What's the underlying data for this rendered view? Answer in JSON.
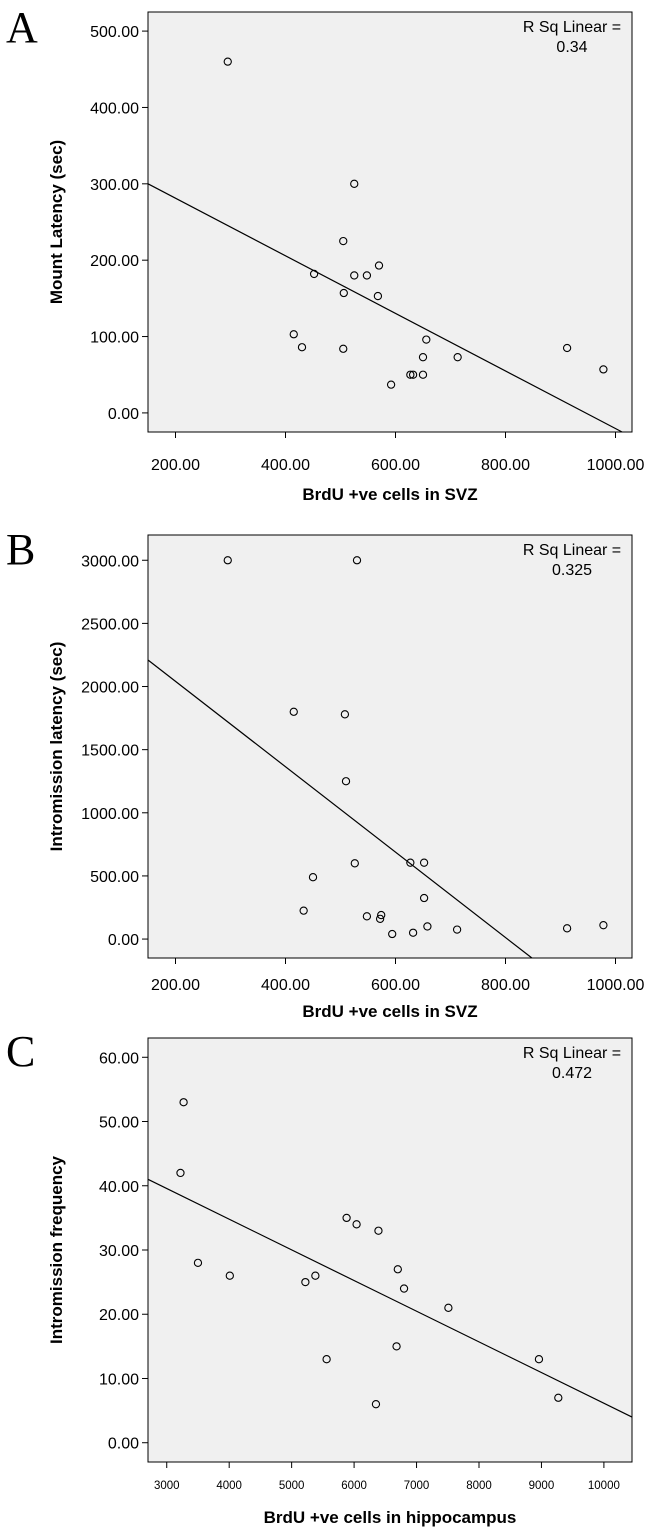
{
  "colors": {
    "plot_bg": "#f0f0f0",
    "axis": "#000000",
    "point_stroke": "#000000"
  },
  "chart_data": [
    {
      "panel": "A",
      "type": "scatter",
      "xlabel": "BrdU +ve cells in SVZ",
      "ylabel": "Mount Latency (sec)",
      "xlim": [
        150,
        1030
      ],
      "ylim": [
        -25,
        525
      ],
      "xticks": [
        200,
        400,
        600,
        800,
        1000
      ],
      "xtick_labels": [
        "200.00",
        "400.00",
        "600.00",
        "800.00",
        "1000.00"
      ],
      "yticks": [
        0,
        100,
        200,
        300,
        400,
        500
      ],
      "ytick_labels": [
        "0.00",
        "100.00",
        "200.00",
        "300.00",
        "400.00",
        "500.00"
      ],
      "rsq_label": "R Sq Linear =",
      "rsq_value": "0.34",
      "fit_line": {
        "x": [
          150,
          1012
        ],
        "y": [
          300,
          -25
        ]
      },
      "points": [
        {
          "x": 295,
          "y": 460
        },
        {
          "x": 525,
          "y": 300
        },
        {
          "x": 505,
          "y": 225
        },
        {
          "x": 570,
          "y": 193
        },
        {
          "x": 452,
          "y": 182
        },
        {
          "x": 525,
          "y": 180
        },
        {
          "x": 548,
          "y": 180
        },
        {
          "x": 506,
          "y": 157
        },
        {
          "x": 568,
          "y": 153
        },
        {
          "x": 415,
          "y": 103
        },
        {
          "x": 656,
          "y": 96
        },
        {
          "x": 430,
          "y": 86
        },
        {
          "x": 505,
          "y": 84
        },
        {
          "x": 912,
          "y": 85
        },
        {
          "x": 650,
          "y": 73
        },
        {
          "x": 713,
          "y": 73
        },
        {
          "x": 978,
          "y": 57
        },
        {
          "x": 627,
          "y": 50
        },
        {
          "x": 632,
          "y": 50
        },
        {
          "x": 650,
          "y": 50
        },
        {
          "x": 592,
          "y": 37
        }
      ]
    },
    {
      "panel": "B",
      "type": "scatter",
      "xlabel": "BrdU +ve cells in SVZ",
      "ylabel": "Intromission latency (sec)",
      "xlim": [
        150,
        1030
      ],
      "ylim": [
        -150,
        3200
      ],
      "xticks": [
        200,
        400,
        600,
        800,
        1000
      ],
      "xtick_labels": [
        "200.00",
        "400.00",
        "600.00",
        "800.00",
        "1000.00"
      ],
      "yticks": [
        0,
        500,
        1000,
        1500,
        2000,
        2500,
        3000
      ],
      "ytick_labels": [
        "0.00",
        "500.00",
        "1000.00",
        "1500.00",
        "2000.00",
        "2500.00",
        "3000.00"
      ],
      "rsq_label": "R Sq Linear =",
      "rsq_value": "0.325",
      "fit_line": {
        "x": [
          150,
          848
        ],
        "y": [
          2210,
          -150
        ]
      },
      "points": [
        {
          "x": 295,
          "y": 3000
        },
        {
          "x": 530,
          "y": 3000
        },
        {
          "x": 415,
          "y": 1800
        },
        {
          "x": 508,
          "y": 1780
        },
        {
          "x": 510,
          "y": 1250
        },
        {
          "x": 526,
          "y": 600
        },
        {
          "x": 627,
          "y": 605
        },
        {
          "x": 652,
          "y": 605
        },
        {
          "x": 450,
          "y": 490
        },
        {
          "x": 652,
          "y": 325
        },
        {
          "x": 433,
          "y": 225
        },
        {
          "x": 548,
          "y": 180
        },
        {
          "x": 574,
          "y": 190
        },
        {
          "x": 572,
          "y": 160
        },
        {
          "x": 658,
          "y": 100
        },
        {
          "x": 712,
          "y": 75
        },
        {
          "x": 912,
          "y": 85
        },
        {
          "x": 978,
          "y": 110
        },
        {
          "x": 632,
          "y": 50
        },
        {
          "x": 594,
          "y": 40
        }
      ]
    },
    {
      "panel": "C",
      "type": "scatter",
      "xlabel": "BrdU +ve cells in hippocampus",
      "ylabel": "Intromission frequency",
      "xlim": [
        2700,
        10450
      ],
      "ylim": [
        -3,
        63
      ],
      "xticks": [
        3000,
        4000,
        5000,
        6000,
        7000,
        8000,
        9000,
        10000
      ],
      "xtick_labels": [
        "3000",
        "4000",
        "5000",
        "6000",
        "7000",
        "8000",
        "9000",
        "10000"
      ],
      "yticks": [
        0,
        10,
        20,
        30,
        40,
        50,
        60
      ],
      "ytick_labels": [
        "0.00",
        "10.00",
        "20.00",
        "30.00",
        "40.00",
        "50.00",
        "60.00"
      ],
      "rsq_label": "R Sq Linear =",
      "rsq_value": "0.472",
      "fit_line": {
        "x": [
          2700,
          10450
        ],
        "y": [
          41,
          4
        ]
      },
      "points": [
        {
          "x": 3270,
          "y": 53
        },
        {
          "x": 3220,
          "y": 42
        },
        {
          "x": 5880,
          "y": 35
        },
        {
          "x": 6040,
          "y": 34
        },
        {
          "x": 6390,
          "y": 33
        },
        {
          "x": 3500,
          "y": 28
        },
        {
          "x": 6700,
          "y": 27
        },
        {
          "x": 4010,
          "y": 26
        },
        {
          "x": 5380,
          "y": 26
        },
        {
          "x": 5220,
          "y": 25
        },
        {
          "x": 6800,
          "y": 24
        },
        {
          "x": 7510,
          "y": 21
        },
        {
          "x": 6680,
          "y": 15
        },
        {
          "x": 5560,
          "y": 13
        },
        {
          "x": 8960,
          "y": 13
        },
        {
          "x": 9270,
          "y": 7
        },
        {
          "x": 6350,
          "y": 6
        }
      ]
    }
  ]
}
